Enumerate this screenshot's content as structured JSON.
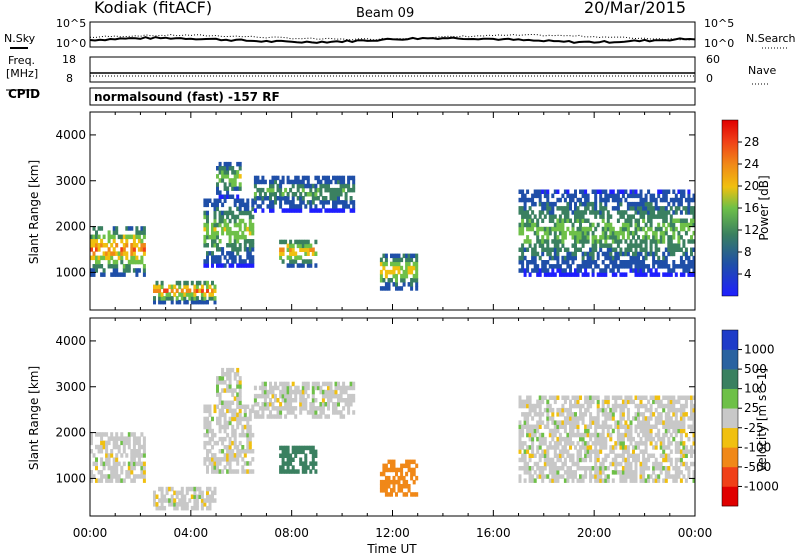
{
  "header": {
    "station": "Kodiak (fitACF)",
    "beam": "Beam 09",
    "date": "20/Mar/2015"
  },
  "strips": {
    "nsky_label": "N.Sky",
    "nsearch_label": "N.Search",
    "noise_ticks": [
      "10^5",
      "10^0"
    ],
    "noise_ticks_right": [
      "10^5",
      "10^0"
    ],
    "freq_label_1": "Freq.",
    "freq_label_2": "[MHz]",
    "freq_ticks": [
      "18",
      "8"
    ],
    "nave_label": "Nave",
    "nave_ticks": [
      "60",
      "0"
    ],
    "cpid_label": "CPID",
    "cpid_text": "normalsound (fast) -157 RF"
  },
  "colors": {
    "power": [
      "#1f1fff",
      "#1f4fa8",
      "#3a8060",
      "#6ec048",
      "#f0c010",
      "#f08818",
      "#f04018",
      "#e00000"
    ],
    "velocity": [
      "#e00000",
      "#f04018",
      "#f08818",
      "#f0c010",
      "#c8c8c8",
      "#6ec048",
      "#3a8060",
      "#2a62a0",
      "#1f3cc8"
    ]
  },
  "chart_data": [
    {
      "type": "heatmap",
      "title": "Power",
      "ylabel": "Slant Range [km]",
      "xlabel": "Time UT",
      "ylim": [
        180,
        4500
      ],
      "yticks": [
        "1000",
        "2000",
        "3000",
        "4000"
      ],
      "xticks": [
        "00:00",
        "04:00",
        "08:00",
        "12:00",
        "16:00",
        "20:00",
        "00:00"
      ],
      "colorbar_label": "Power [dB]",
      "colorbar_ticks": [
        "28",
        "24",
        "20",
        "16",
        "12",
        "8",
        "4"
      ],
      "colorbar_range": [
        0,
        32
      ],
      "echo_regions": [
        {
          "t": [
            0.0,
            2.2
          ],
          "r": [
            1000,
            2100
          ],
          "peak_db": 26
        },
        {
          "t": [
            2.5,
            5.0
          ],
          "r": [
            400,
            900
          ],
          "peak_db": 26
        },
        {
          "t": [
            4.5,
            6.5
          ],
          "r": [
            1200,
            2700
          ],
          "peak_db": 18
        },
        {
          "t": [
            5.0,
            6.0
          ],
          "r": [
            2700,
            3500
          ],
          "peak_db": 18
        },
        {
          "t": [
            6.5,
            10.5
          ],
          "r": [
            2400,
            3200
          ],
          "peak_db": 14
        },
        {
          "t": [
            7.5,
            9.0
          ],
          "r": [
            1200,
            1800
          ],
          "peak_db": 24
        },
        {
          "t": [
            11.5,
            13.0
          ],
          "r": [
            700,
            1500
          ],
          "peak_db": 22
        },
        {
          "t": [
            17.0,
            24.0
          ],
          "r": [
            1000,
            2900
          ],
          "peak_db": 16
        }
      ]
    },
    {
      "type": "heatmap",
      "title": "Velocity",
      "ylabel": "Slant Range [km]",
      "xlabel": "Time UT",
      "ylim": [
        180,
        4500
      ],
      "yticks": [
        "1000",
        "2000",
        "3000",
        "4000"
      ],
      "xticks": [
        "00:00",
        "04:00",
        "08:00",
        "12:00",
        "16:00",
        "20:00",
        "00:00"
      ],
      "colorbar_label": "Velocity [m s^-1]",
      "colorbar_ticks": [
        "1000",
        "500",
        "100",
        "25",
        "-25",
        "-100",
        "-500",
        "-1000"
      ],
      "colorbar_range": [
        -1000,
        1000
      ],
      "echo_regions": [
        {
          "t": [
            0.0,
            2.2
          ],
          "r": [
            1000,
            2100
          ],
          "v": 0
        },
        {
          "t": [
            7.5,
            9.0
          ],
          "r": [
            1200,
            1800
          ],
          "v": 150
        },
        {
          "t": [
            11.5,
            13.0
          ],
          "r": [
            700,
            1500
          ],
          "v": -300
        },
        {
          "t": [
            17.0,
            24.0
          ],
          "r": [
            1000,
            2900
          ],
          "v": 0
        }
      ]
    }
  ]
}
